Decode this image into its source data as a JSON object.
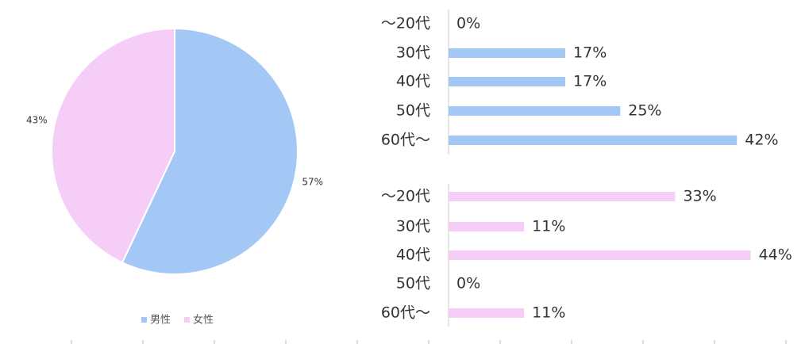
{
  "chart_data": [
    {
      "type": "pie",
      "categories": [
        "男性",
        "女性"
      ],
      "values": [
        57,
        43
      ],
      "value_labels": [
        "57%",
        "43%"
      ],
      "colors": [
        "#a4c8f5",
        "#f5cdf7"
      ],
      "legend": "bottom"
    },
    {
      "type": "hbar",
      "categories": [
        "～20代",
        "30代",
        "40代",
        "50代",
        "60代～"
      ],
      "values": [
        0,
        17,
        17,
        25,
        42
      ],
      "value_labels": [
        "0%",
        "17%",
        "17%",
        "25%",
        "42%"
      ],
      "color": "#a4c8f5"
    },
    {
      "type": "hbar",
      "categories": [
        "～20代",
        "30代",
        "40代",
        "50代",
        "60代～"
      ],
      "values": [
        33,
        11,
        44,
        0,
        11
      ],
      "value_labels": [
        "33%",
        "11%",
        "44%",
        "0%",
        "11%"
      ],
      "color": "#f5cdf7"
    }
  ]
}
